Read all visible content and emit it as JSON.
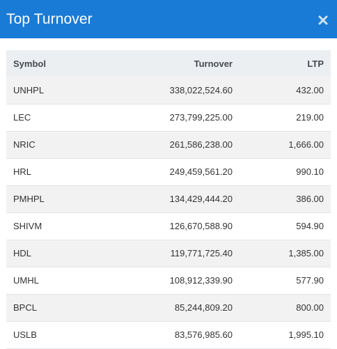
{
  "modal": {
    "title": "Top Turnover",
    "close_icon": "close-icon"
  },
  "table": {
    "headers": {
      "symbol": "Symbol",
      "turnover": "Turnover",
      "ltp": "LTP"
    },
    "rows": [
      {
        "symbol": "UNHPL",
        "turnover": "338,022,524.60",
        "ltp": "432.00"
      },
      {
        "symbol": "LEC",
        "turnover": "273,799,225.00",
        "ltp": "219.00"
      },
      {
        "symbol": "NRIC",
        "turnover": "261,586,238.00",
        "ltp": "1,666.00"
      },
      {
        "symbol": "HRL",
        "turnover": "249,459,561.20",
        "ltp": "990.10"
      },
      {
        "symbol": "PMHPL",
        "turnover": "134,429,444.20",
        "ltp": "386.00"
      },
      {
        "symbol": "SHIVM",
        "turnover": "126,670,588.90",
        "ltp": "594.90"
      },
      {
        "symbol": "HDL",
        "turnover": "119,771,725.40",
        "ltp": "1,385.00"
      },
      {
        "symbol": "UMHL",
        "turnover": "108,912,339.90",
        "ltp": "577.90"
      },
      {
        "symbol": "BPCL",
        "turnover": "85,244,809.20",
        "ltp": "800.00"
      },
      {
        "symbol": "USLB",
        "turnover": "83,576,985.60",
        "ltp": "1,995.10"
      }
    ]
  },
  "colors": {
    "header_bg": "#1a7bd6",
    "table_head_bg": "#eceff2",
    "row_stripe": "#f2f2f2"
  }
}
